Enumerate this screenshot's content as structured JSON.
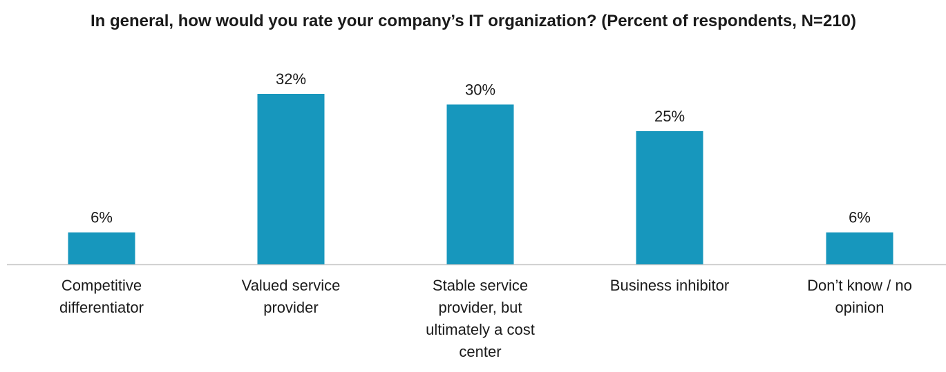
{
  "chart_data": {
    "type": "bar",
    "title": "In general, how would you rate your company’s IT organization? (Percent of respondents, N=210)",
    "xlabel": "",
    "ylabel": "",
    "categories": [
      "Competitive differentiator",
      "Valued service provider",
      "Stable service provider, but ultimately a cost center",
      "Business inhibitor",
      "Don’t know / no opinion"
    ],
    "values": [
      6,
      32,
      30,
      25,
      6
    ],
    "data_labels": [
      "6%",
      "32%",
      "30%",
      "25%",
      "6%"
    ],
    "ylim": [
      0,
      32
    ],
    "grid": false,
    "legend": "none",
    "bar_color": "#1797bd",
    "axis_color": "#c8c8c8"
  }
}
